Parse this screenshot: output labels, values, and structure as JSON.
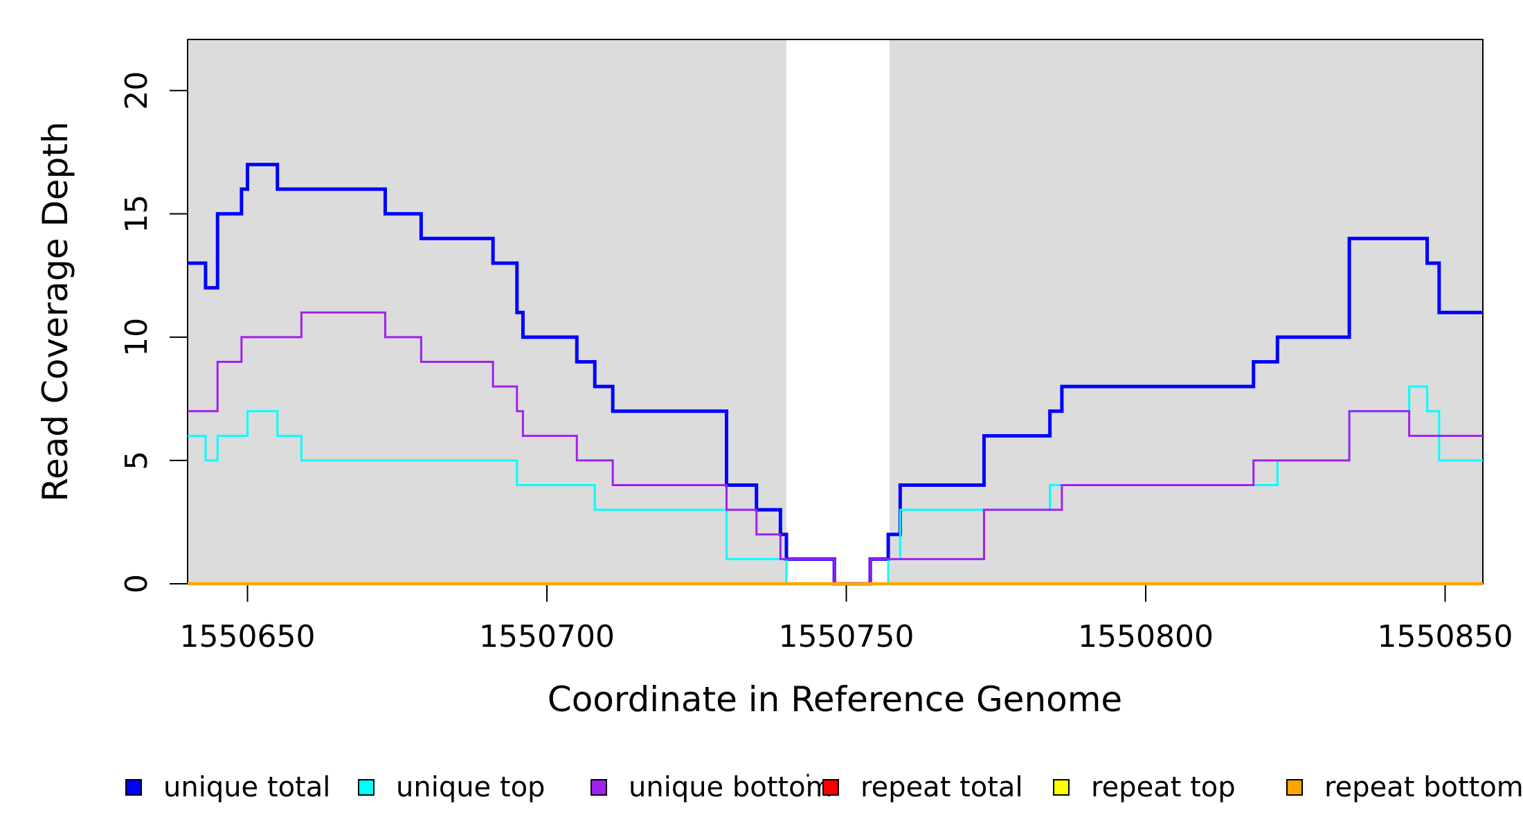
{
  "chart_data": {
    "type": "line",
    "subtype": "step-after",
    "title": "",
    "xlabel": "Coordinate in Reference Genome",
    "ylabel": "Read Coverage Depth",
    "xlim": [
      1550640,
      1550856.3
    ],
    "ylim": [
      0,
      22.07
    ],
    "x_ticks": [
      1550650,
      1550700,
      1550750,
      1550800,
      1550850
    ],
    "y_ticks": [
      0,
      5,
      10,
      15,
      20
    ],
    "grid": false,
    "legend_position": "bottom-horizontal",
    "plot_background_color": "#DCDCDC",
    "background_bands": [
      {
        "from": 1550640,
        "to": 1550740,
        "color": "#DCDCDC"
      },
      {
        "from": 1550757.2,
        "to": 1550856.3,
        "color": "#DCDCDC"
      }
    ],
    "white_gap": {
      "from": 1550740,
      "to": 1550757.2
    },
    "series": [
      {
        "name": "unique total",
        "color": "#0000FF",
        "line_width": 5,
        "points": [
          [
            1550640,
            13
          ],
          [
            1550643,
            12
          ],
          [
            1550645,
            15
          ],
          [
            1550649,
            16
          ],
          [
            1550650,
            17
          ],
          [
            1550655,
            16
          ],
          [
            1550673,
            15
          ],
          [
            1550679,
            14
          ],
          [
            1550691,
            13
          ],
          [
            1550695,
            11
          ],
          [
            1550696,
            10
          ],
          [
            1550705,
            9
          ],
          [
            1550708,
            8
          ],
          [
            1550711,
            7
          ],
          [
            1550730,
            4
          ],
          [
            1550735,
            3
          ],
          [
            1550739,
            2
          ],
          [
            1550740,
            1
          ],
          [
            1550748,
            0
          ],
          [
            1550754,
            1
          ],
          [
            1550757,
            2
          ],
          [
            1550759,
            4
          ],
          [
            1550773,
            6
          ],
          [
            1550784,
            7
          ],
          [
            1550786,
            8
          ],
          [
            1550818,
            9
          ],
          [
            1550822,
            10
          ],
          [
            1550834,
            14
          ],
          [
            1550847,
            13
          ],
          [
            1550849,
            11
          ]
        ]
      },
      {
        "name": "unique top",
        "color": "#00FFFF",
        "line_width": 3,
        "points": [
          [
            1550640,
            6
          ],
          [
            1550643,
            5
          ],
          [
            1550645,
            6
          ],
          [
            1550650,
            7
          ],
          [
            1550655,
            6
          ],
          [
            1550659,
            5
          ],
          [
            1550695,
            4
          ],
          [
            1550708,
            3
          ],
          [
            1550730,
            1
          ],
          [
            1550740,
            0
          ],
          [
            1550757,
            1
          ],
          [
            1550759,
            3
          ],
          [
            1550784,
            4
          ],
          [
            1550822,
            5
          ],
          [
            1550834,
            7
          ],
          [
            1550844,
            8
          ],
          [
            1550847,
            7
          ],
          [
            1550849,
            5
          ]
        ]
      },
      {
        "name": "unique bottom",
        "color": "#A020F0",
        "line_width": 3,
        "points": [
          [
            1550640,
            7
          ],
          [
            1550645,
            9
          ],
          [
            1550649,
            10
          ],
          [
            1550659,
            11
          ],
          [
            1550673,
            10
          ],
          [
            1550679,
            9
          ],
          [
            1550691,
            8
          ],
          [
            1550695,
            7
          ],
          [
            1550696,
            6
          ],
          [
            1550705,
            5
          ],
          [
            1550711,
            4
          ],
          [
            1550730,
            3
          ],
          [
            1550735,
            2
          ],
          [
            1550739,
            1
          ],
          [
            1550748,
            0
          ],
          [
            1550754,
            1
          ],
          [
            1550773,
            3
          ],
          [
            1550786,
            4
          ],
          [
            1550818,
            5
          ],
          [
            1550834,
            7
          ],
          [
            1550844,
            6
          ]
        ]
      },
      {
        "name": "repeat total",
        "color": "#FF0000",
        "line_width": 3,
        "points": [
          [
            1550640,
            0
          ]
        ]
      },
      {
        "name": "repeat top",
        "color": "#FFFF00",
        "line_width": 3,
        "points": [
          [
            1550640,
            0
          ]
        ]
      },
      {
        "name": "repeat bottom",
        "color": "#FFA500",
        "line_width": 4.5,
        "points": [
          [
            1550640,
            0
          ]
        ]
      }
    ]
  }
}
